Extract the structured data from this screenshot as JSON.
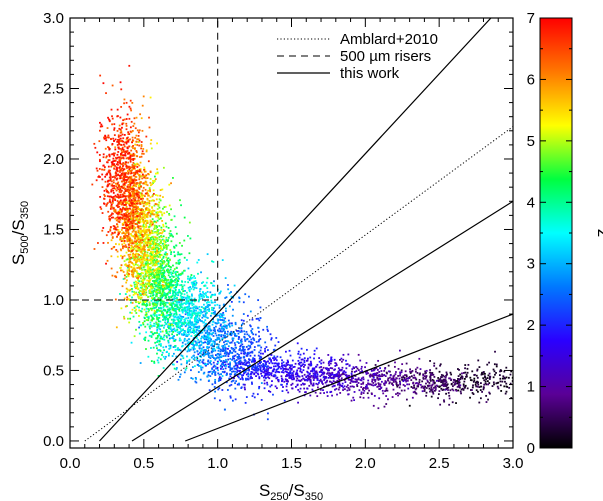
{
  "chart_data": {
    "type": "scatter",
    "xlabel": {
      "base": "S",
      "sub1": "250",
      "sep": "/S",
      "sub2": "350"
    },
    "ylabel": {
      "base": "S",
      "sub1": "500",
      "sep": "/S",
      "sub2": "350"
    },
    "xlim": [
      0.0,
      3.0
    ],
    "ylim": [
      -0.05,
      3.0
    ],
    "xticks": [
      "0.0",
      "0.5",
      "1.0",
      "1.5",
      "2.0",
      "2.5",
      "3.0"
    ],
    "yticks": [
      "0.0",
      "0.5",
      "1.0",
      "1.5",
      "2.0",
      "2.5",
      "3.0"
    ],
    "grid": false,
    "legend_position": "top-right",
    "legend": [
      {
        "label": "Amblard+2010",
        "style": "dotted"
      },
      {
        "label": "500 µm risers",
        "style": "dashed"
      },
      {
        "label": "this work",
        "style": "solid"
      }
    ],
    "reference_lines": [
      {
        "name": "Amblard+2010",
        "style": "dotted",
        "points": [
          [
            0.1,
            0.0
          ],
          [
            3.0,
            2.23
          ]
        ]
      },
      {
        "name": "500 µm risers",
        "style": "dashed",
        "points": [
          [
            0.0,
            1.0
          ],
          [
            1.0,
            1.0
          ],
          [
            1.0,
            3.0
          ]
        ]
      },
      {
        "name": "this work",
        "style": "solid",
        "points": [
          [
            0.2,
            0.0
          ],
          [
            2.85,
            3.0
          ]
        ]
      },
      {
        "name": "this work",
        "style": "solid",
        "points": [
          [
            0.42,
            0.0
          ],
          [
            3.0,
            1.7
          ]
        ]
      },
      {
        "name": "this work",
        "style": "solid",
        "points": [
          [
            0.78,
            0.0
          ],
          [
            3.0,
            0.9
          ]
        ]
      }
    ],
    "colorbar": {
      "label": "z",
      "range": [
        0,
        7
      ],
      "ticks": [
        "0",
        "1",
        "2",
        "3",
        "4",
        "5",
        "6",
        "7"
      ],
      "stops": [
        "#000000",
        "#5a0096",
        "#2a00ff",
        "#0078ff",
        "#00ffff",
        "#00ff40",
        "#ffff00",
        "#ff7800",
        "#ff0000"
      ]
    },
    "scatter_track": {
      "note": "median colour trend of the point cloud: redshift z, colour x, colour y",
      "z": [
        6.8,
        6.0,
        5.0,
        4.0,
        3.0,
        2.2,
        1.5,
        1.0,
        0.5,
        0.2
      ],
      "x": [
        0.33,
        0.42,
        0.52,
        0.65,
        0.85,
        1.15,
        1.55,
        2.0,
        2.45,
        2.8
      ],
      "y": [
        1.9,
        1.65,
        1.35,
        1.05,
        0.8,
        0.6,
        0.47,
        0.42,
        0.41,
        0.42
      ]
    }
  }
}
